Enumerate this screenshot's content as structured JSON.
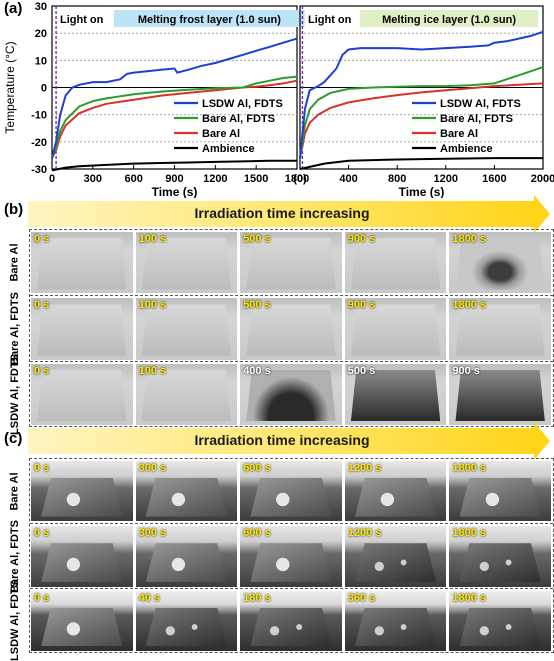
{
  "panel_a": {
    "label": "(a)",
    "y_axis_label": "Temperature (°C)",
    "light_on": "Light on",
    "charts": [
      {
        "title": "Melting frost layer (1.0 sun)",
        "title_color": "#bde3f6",
        "x_label": "Time (s)",
        "x_ticks": [
          "0",
          "300",
          "600",
          "900",
          "1200",
          "1500",
          "1800"
        ],
        "x_range": [
          0,
          1800
        ]
      },
      {
        "title": "Melting ice layer (1.0 sun)",
        "title_color": "#dff0c4",
        "x_label": "Time (s)",
        "x_ticks": [
          "(0)",
          "400",
          "800",
          "1200",
          "1600",
          "2000"
        ],
        "x_range": [
          0,
          2000
        ]
      }
    ],
    "y_ticks": [
      "-30",
      "-20",
      "-10",
      "0",
      "10",
      "20",
      "30"
    ],
    "y_range": [
      -30,
      30
    ],
    "legend": [
      {
        "label": "LSDW Al, FDTS",
        "color": "#1f3fd1"
      },
      {
        "label": "Bare Al, FDTS",
        "color": "#2e9b2e"
      },
      {
        "label": "Bare Al",
        "color": "#d8322a"
      },
      {
        "label": "Ambience",
        "color": "#000000"
      }
    ]
  },
  "chart_data": [
    {
      "type": "line",
      "title": "Melting frost layer (1.0 sun)",
      "xlabel": "Time (s)",
      "ylabel": "Temperature (°C)",
      "xlim": [
        0,
        1800
      ],
      "ylim": [
        -30,
        30
      ],
      "grid": "horizontal dashed",
      "legend_position": "bottom-right",
      "series": [
        {
          "name": "LSDW Al, FDTS",
          "color": "#1f3fd1",
          "x": [
            0,
            30,
            60,
            100,
            150,
            200,
            300,
            400,
            500,
            550,
            600,
            700,
            800,
            900,
            920,
            1000,
            1100,
            1200,
            1300,
            1400,
            1500,
            1600,
            1700,
            1800
          ],
          "y": [
            -26,
            -20,
            -10,
            -3,
            0,
            1,
            2,
            2,
            3,
            5,
            5.5,
            6,
            6.5,
            7,
            5.5,
            6.5,
            8,
            9,
            10.5,
            12,
            13.5,
            15,
            16.5,
            18
          ]
        },
        {
          "name": "Bare Al, FDTS",
          "color": "#2e9b2e",
          "x": [
            0,
            30,
            60,
            100,
            200,
            300,
            400,
            600,
            800,
            1000,
            1200,
            1400,
            1500,
            1600,
            1700,
            1800
          ],
          "y": [
            -26,
            -22,
            -16,
            -12,
            -7,
            -5,
            -4,
            -2.5,
            -1.5,
            -0.8,
            -0.3,
            0,
            1.5,
            2.5,
            3.5,
            4
          ]
        },
        {
          "name": "Bare Al",
          "color": "#d8322a",
          "x": [
            0,
            30,
            60,
            100,
            200,
            300,
            400,
            600,
            800,
            1000,
            1200,
            1300,
            1400,
            1500,
            1600,
            1700,
            1800
          ],
          "y": [
            -26,
            -23,
            -18,
            -14,
            -9.5,
            -7.5,
            -6,
            -4.5,
            -3,
            -2,
            -1,
            -0.5,
            0,
            0.3,
            0.8,
            1.5,
            2.5
          ]
        },
        {
          "name": "Ambience",
          "color": "#000000",
          "x": [
            0,
            100,
            200,
            400,
            600,
            800,
            1000,
            1200,
            1400,
            1600,
            1800
          ],
          "y": [
            -30.5,
            -29.5,
            -29,
            -28.5,
            -28,
            -27.8,
            -27.6,
            -27.4,
            -27.2,
            -27,
            -27
          ]
        }
      ]
    },
    {
      "type": "line",
      "title": "Melting ice layer (1.0 sun)",
      "xlabel": "Time (s)",
      "ylabel": "Temperature (°C)",
      "xlim": [
        0,
        2000
      ],
      "ylim": [
        -30,
        30
      ],
      "grid": "horizontal dashed",
      "legend_position": "bottom-right",
      "series": [
        {
          "name": "LSDW Al, FDTS",
          "color": "#1f3fd1",
          "x": [
            0,
            40,
            80,
            150,
            200,
            300,
            350,
            400,
            500,
            600,
            800,
            1000,
            1200,
            1400,
            1550,
            1600,
            1700,
            1800,
            1900,
            2000
          ],
          "y": [
            -26,
            -8,
            -1,
            0.5,
            2,
            7,
            12,
            14,
            14.5,
            14.5,
            14.5,
            14,
            14.5,
            15,
            15.5,
            16.5,
            17,
            18,
            19,
            20.5
          ]
        },
        {
          "name": "Bare Al, FDTS",
          "color": "#2e9b2e",
          "x": [
            0,
            40,
            80,
            150,
            250,
            400,
            600,
            800,
            1000,
            1200,
            1400,
            1600,
            1700,
            1800,
            1900,
            2000
          ],
          "y": [
            -26,
            -14,
            -8,
            -4.5,
            -2,
            -0.5,
            0,
            0.3,
            0.5,
            0.5,
            0.8,
            1.5,
            3,
            4.5,
            6,
            7.5
          ]
        },
        {
          "name": "Bare Al",
          "color": "#d8322a",
          "x": [
            0,
            40,
            80,
            150,
            250,
            400,
            600,
            800,
            1000,
            1200,
            1400,
            1600,
            1800,
            2000
          ],
          "y": [
            -26,
            -17,
            -13,
            -10,
            -7.5,
            -5.5,
            -4,
            -2.8,
            -1.8,
            -1,
            -0.3,
            0.5,
            1,
            1.5
          ]
        },
        {
          "name": "Ambience",
          "color": "#000000",
          "x": [
            0,
            200,
            400,
            800,
            1200,
            1600,
            2000
          ],
          "y": [
            -30,
            -28,
            -27,
            -26.5,
            -26.2,
            -26,
            -26
          ]
        }
      ]
    }
  ],
  "panel_b": {
    "label": "(b)",
    "banner": "Irradiation time increasing",
    "rows": [
      {
        "label": "Bare Al",
        "times": [
          "0 s",
          "100 s",
          "500 s",
          "900 s",
          "1800 s"
        ]
      },
      {
        "label": "Bare Al, FDTS",
        "times": [
          "0 s",
          "100 s",
          "500 s",
          "900 s",
          "1800 s"
        ]
      },
      {
        "label": "LSDW Al, FDTS",
        "times": [
          "0 s",
          "100 s",
          "400 s",
          "500 s",
          "900 s"
        ]
      }
    ]
  },
  "panel_c": {
    "label": "(c)",
    "banner": "Irradiation time increasing",
    "rows": [
      {
        "label": "Bare Al",
        "times": [
          "0 s",
          "300 s",
          "600 s",
          "1200 s",
          "1800 s"
        ]
      },
      {
        "label": "Bare Al, FDTS",
        "times": [
          "0 s",
          "300 s",
          "600 s",
          "1200 s",
          "1800 s"
        ]
      },
      {
        "label": "LSDW Al, FDTS",
        "times": [
          "0 s",
          "40 s",
          "180 s",
          "360 s",
          "1800 s"
        ]
      }
    ]
  }
}
